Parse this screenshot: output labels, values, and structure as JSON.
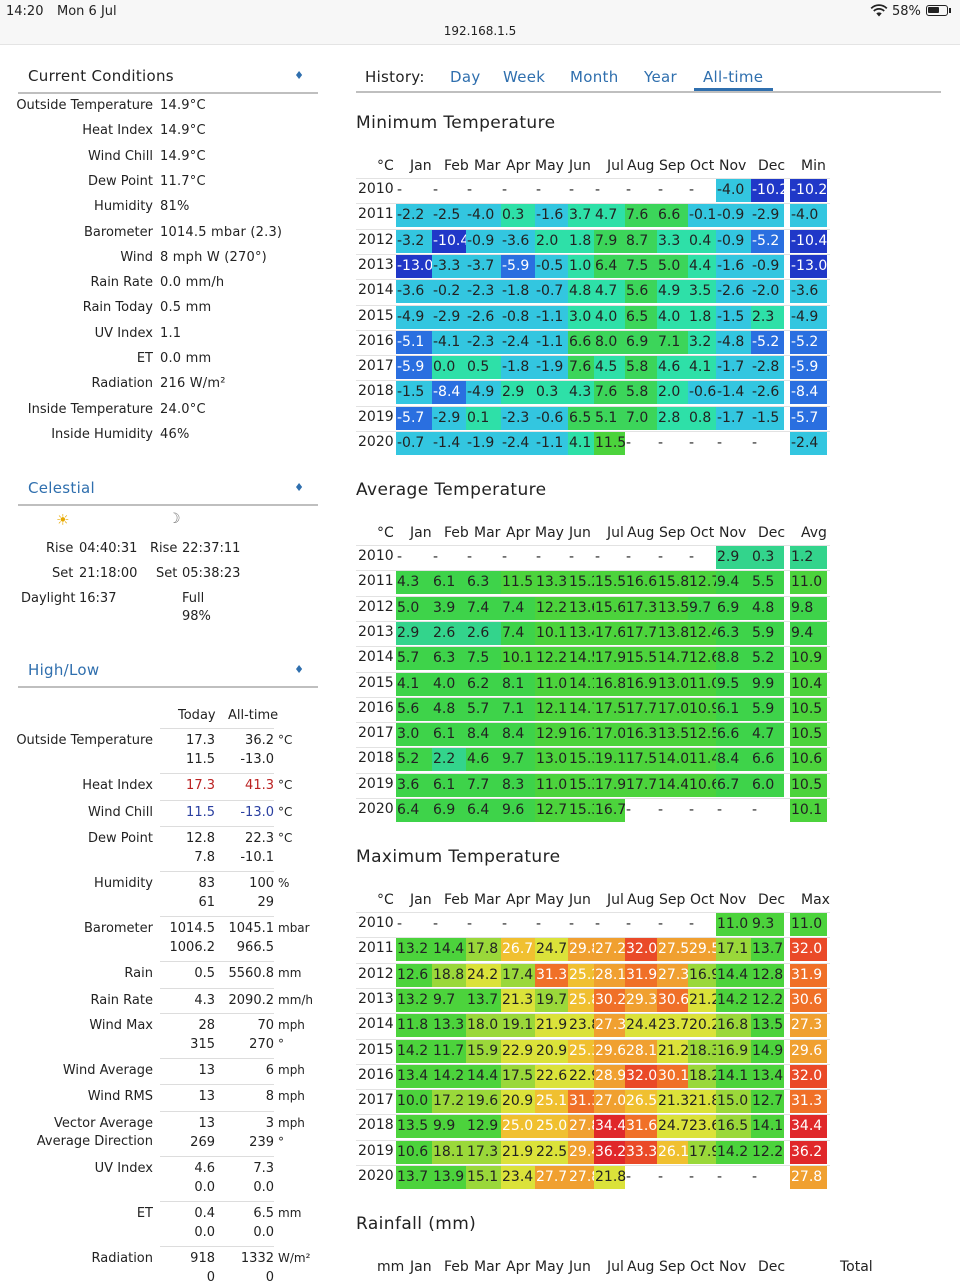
{
  "status_bar": {
    "time": "14:20",
    "date": "Mon 6 Jul",
    "url": "192.168.1.5",
    "battery": "58%"
  },
  "current": {
    "title": "Current Conditions",
    "rows": [
      {
        "label": "Outside Temperature",
        "value": "14.9°C"
      },
      {
        "label": "Heat Index",
        "value": "14.9°C"
      },
      {
        "label": "Wind Chill",
        "value": "14.9°C"
      },
      {
        "label": "Dew Point",
        "value": "11.7°C"
      },
      {
        "label": "Humidity",
        "value": "81%"
      },
      {
        "label": "Barometer",
        "value": "1014.5 mbar (2.3)"
      },
      {
        "label": "Wind",
        "value": "8 mph W (270°)"
      },
      {
        "label": "Rain Rate",
        "value": "0.0 mm/h"
      },
      {
        "label": "Rain Today",
        "value": "0.5 mm"
      },
      {
        "label": "UV Index",
        "value": "1.1"
      },
      {
        "label": "ET",
        "value": "0.0 mm"
      },
      {
        "label": "Radiation",
        "value": "216 W/m²"
      },
      {
        "label": "Inside Temperature",
        "value": "24.0°C"
      },
      {
        "label": "Inside Humidity",
        "value": "46%"
      }
    ]
  },
  "celestial": {
    "title": "Celestial",
    "sun_icon": "sun-icon",
    "moon_icon": "moon-icon",
    "rise_label": "Rise",
    "set_label": "Set",
    "daylight_label": "Daylight",
    "sun_rise": "04:40:31",
    "sun_set": "21:18:00",
    "daylight": "16:37",
    "moon_rise": "22:37:11",
    "moon_set": "05:38:23",
    "moon_phase": "Full",
    "moon_pct": "98%"
  },
  "highlow": {
    "title": "High/Low",
    "col_today": "Today",
    "col_alltime": "All-time",
    "rows": [
      {
        "label": "Outside Temperature",
        "t1": "17.3",
        "a1": "36.2",
        "t2": "11.5",
        "a2": "-13.0",
        "unit": "°C"
      },
      {
        "label": "Heat Index",
        "t1": "17.3",
        "a1": "41.3",
        "unit": "°C",
        "color": "#b22"
      },
      {
        "label": "Wind Chill",
        "t1": "11.5",
        "a1": "-13.0",
        "unit": "°C",
        "color": "#2a3fa0"
      },
      {
        "label": "Dew Point",
        "t1": "12.8",
        "a1": "22.3",
        "t2": "7.8",
        "a2": "-10.1",
        "unit": "°C"
      },
      {
        "label": "Humidity",
        "t1": "83",
        "a1": "100",
        "t2": "61",
        "a2": "29",
        "unit": "%"
      },
      {
        "label": "Barometer",
        "t1": "1014.5",
        "a1": "1045.1",
        "t2": "1006.2",
        "a2": "966.5",
        "unit": "mbar"
      },
      {
        "label": "Rain",
        "t1": "0.5",
        "a1": "5560.8",
        "unit": "mm"
      },
      {
        "label": "Rain Rate",
        "t1": "4.3",
        "a1": "2090.2",
        "unit": "mm/h"
      },
      {
        "label": "Wind Max",
        "t1": "28",
        "a1": "70",
        "t2": "315",
        "a2": "270",
        "unit": "mph",
        "unit2": "°"
      },
      {
        "label": "Wind Average",
        "t1": "13",
        "a1": "6",
        "unit": "mph"
      },
      {
        "label": "Wind RMS",
        "t1": "13",
        "a1": "8",
        "unit": "mph"
      },
      {
        "label": "Vector Average",
        "label2": "Average Direction",
        "t1": "13",
        "a1": "3",
        "t2": "269",
        "a2": "239",
        "unit": "mph",
        "unit2": "°"
      },
      {
        "label": "UV Index",
        "t1": "4.6",
        "a1": "7.3",
        "t2": "0.0",
        "a2": "0.0",
        "unit": ""
      },
      {
        "label": "ET",
        "t1": "0.4",
        "a1": "6.5",
        "t2": "0.0",
        "a2": "0.0",
        "unit": "mm"
      },
      {
        "label": "Radiation",
        "t1": "918",
        "a1": "1332",
        "t2": "0",
        "a2": "0",
        "unit": "W/m²"
      }
    ]
  },
  "history": {
    "label": "History:",
    "tabs": [
      "Day",
      "Week",
      "Month",
      "Year",
      "All-time"
    ],
    "active_tab": "All-time"
  },
  "months": [
    "Jan",
    "Feb",
    "Mar",
    "Apr",
    "May",
    "Jun",
    "Jul",
    "Aug",
    "Sep",
    "Oct",
    "Nov",
    "Dec"
  ],
  "tables": {
    "min": {
      "title": "Minimum Temperature",
      "unit": "°C",
      "summary_label": "Min",
      "years": [
        "2010",
        "2011",
        "2012",
        "2013",
        "2014",
        "2015",
        "2016",
        "2017",
        "2018",
        "2019",
        "2020"
      ],
      "rows": [
        [
          "-",
          "-",
          "-",
          "-",
          "-",
          "-",
          "-",
          "-",
          "-",
          "-",
          "-4.0",
          "-10.2",
          "-10.2"
        ],
        [
          "-2.2",
          "-2.5",
          "-4.0",
          "0.3",
          "-1.6",
          "3.7",
          "4.7",
          "7.6",
          "6.6",
          "-0.1",
          "-0.9",
          "-2.9",
          "-4.0"
        ],
        [
          "-3.2",
          "-10.4",
          "-0.9",
          "-3.6",
          "2.0",
          "1.8",
          "7.9",
          "8.7",
          "3.3",
          "0.4",
          "-0.9",
          "-5.2",
          "-10.4"
        ],
        [
          "-13.0",
          "-3.3",
          "-3.7",
          "-5.9",
          "-0.5",
          "1.0",
          "6.4",
          "7.5",
          "5.0",
          "4.4",
          "-1.6",
          "-0.9",
          "-13.0"
        ],
        [
          "-3.6",
          "-0.2",
          "-2.3",
          "-1.8",
          "-0.7",
          "4.8",
          "4.7",
          "5.6",
          "4.9",
          "3.5",
          "-2.6",
          "-2.0",
          "-3.6"
        ],
        [
          "-4.9",
          "-2.9",
          "-2.6",
          "-0.8",
          "-1.1",
          "3.0",
          "4.0",
          "6.5",
          "4.0",
          "1.8",
          "-1.5",
          "2.3",
          "-4.9"
        ],
        [
          "-5.1",
          "-4.1",
          "-2.3",
          "-2.4",
          "-1.1",
          "6.6",
          "8.0",
          "6.9",
          "7.1",
          "3.2",
          "-4.8",
          "-5.2",
          "-5.2"
        ],
        [
          "-5.9",
          "0.0",
          "0.5",
          "-1.8",
          "-1.9",
          "7.6",
          "4.5",
          "5.8",
          "4.6",
          "4.1",
          "-1.7",
          "-2.8",
          "-5.9"
        ],
        [
          "-1.5",
          "-8.4",
          "-4.9",
          "2.9",
          "0.3",
          "4.3",
          "7.6",
          "5.8",
          "2.0",
          "-0.6",
          "-1.4",
          "-2.6",
          "-8.4"
        ],
        [
          "-5.7",
          "-2.9",
          "0.1",
          "-2.3",
          "-0.6",
          "6.5",
          "5.1",
          "7.0",
          "2.8",
          "0.8",
          "-1.7",
          "-1.5",
          "-5.7"
        ],
        [
          "-0.7",
          "-1.4",
          "-1.9",
          "-2.4",
          "-1.1",
          "4.1",
          "11.5",
          "-",
          "-",
          "-",
          "-",
          "-",
          "-2.4"
        ]
      ]
    },
    "avg": {
      "title": "Average Temperature",
      "unit": "°C",
      "summary_label": "Avg",
      "years": [
        "2010",
        "2011",
        "2012",
        "2013",
        "2014",
        "2015",
        "2016",
        "2017",
        "2018",
        "2019",
        "2020"
      ],
      "rows": [
        [
          "-",
          "-",
          "-",
          "-",
          "-",
          "-",
          "-",
          "-",
          "-",
          "-",
          "2.9",
          "0.3",
          "1.2"
        ],
        [
          "4.3",
          "6.1",
          "6.3",
          "11.5",
          "13.3",
          "15.2",
          "15.5",
          "16.6",
          "15.8",
          "12.7",
          "9.4",
          "5.5",
          "11.0"
        ],
        [
          "5.0",
          "3.9",
          "7.4",
          "7.4",
          "12.2",
          "13.6",
          "15.6",
          "17.3",
          "13.5",
          "9.7",
          "6.9",
          "4.8",
          "9.8"
        ],
        [
          "2.9",
          "2.6",
          "2.6",
          "7.4",
          "10.1",
          "13.4",
          "17.6",
          "17.7",
          "13.8",
          "12.4",
          "6.3",
          "5.9",
          "9.4"
        ],
        [
          "5.7",
          "6.3",
          "7.5",
          "10.1",
          "12.2",
          "14.5",
          "17.9",
          "15.5",
          "14.7",
          "12.6",
          "8.8",
          "5.2",
          "10.9"
        ],
        [
          "4.1",
          "4.0",
          "6.2",
          "8.1",
          "11.0",
          "14.1",
          "16.8",
          "16.9",
          "13.0",
          "11.0",
          "9.5",
          "9.9",
          "10.4"
        ],
        [
          "5.6",
          "4.8",
          "5.7",
          "7.1",
          "12.1",
          "14.7",
          "17.5",
          "17.7",
          "17.0",
          "10.9",
          "6.1",
          "5.9",
          "10.5"
        ],
        [
          "3.0",
          "6.1",
          "8.4",
          "8.4",
          "12.9",
          "16.7",
          "17.0",
          "16.3",
          "13.5",
          "12.5",
          "6.6",
          "4.7",
          "10.5"
        ],
        [
          "5.2",
          "2.2",
          "4.6",
          "9.7",
          "13.0",
          "15.3",
          "19.1",
          "17.5",
          "14.0",
          "11.4",
          "8.4",
          "6.6",
          "10.6"
        ],
        [
          "3.6",
          "6.1",
          "7.7",
          "8.3",
          "11.0",
          "15.3",
          "17.9",
          "17.7",
          "14.4",
          "10.6",
          "6.7",
          "6.0",
          "10.5"
        ],
        [
          "6.4",
          "6.9",
          "6.4",
          "9.6",
          "12.7",
          "15.3",
          "16.7",
          "-",
          "-",
          "-",
          "-",
          "-",
          "10.1"
        ]
      ]
    },
    "max": {
      "title": "Maximum Temperature",
      "unit": "°C",
      "summary_label": "Max",
      "years": [
        "2010",
        "2011",
        "2012",
        "2013",
        "2014",
        "2015",
        "2016",
        "2017",
        "2018",
        "2019",
        "2020"
      ],
      "rows": [
        [
          "-",
          "-",
          "-",
          "-",
          "-",
          "-",
          "-",
          "-",
          "-",
          "-",
          "11.0",
          "9.3",
          "11.0"
        ],
        [
          "13.2",
          "14.4",
          "17.8",
          "26.7",
          "24.7",
          "29.8",
          "27.2",
          "32.0",
          "27.5",
          "29.5",
          "17.1",
          "13.7",
          "32.0"
        ],
        [
          "12.6",
          "18.8",
          "24.2",
          "17.4",
          "31.3",
          "25.2",
          "28.1",
          "31.9",
          "27.3",
          "16.9",
          "14.4",
          "12.8",
          "31.9"
        ],
        [
          "13.2",
          "9.7",
          "13.7",
          "21.3",
          "19.7",
          "25.8",
          "30.2",
          "29.3",
          "30.6",
          "21.2",
          "14.2",
          "12.2",
          "30.6"
        ],
        [
          "11.8",
          "13.3",
          "18.0",
          "19.1",
          "21.9",
          "23.8",
          "27.3",
          "24.4",
          "23.7",
          "20.2",
          "16.8",
          "13.5",
          "27.3"
        ],
        [
          "14.2",
          "11.7",
          "15.9",
          "22.9",
          "20.9",
          "25.3",
          "29.6",
          "28.1",
          "21.2",
          "18.3",
          "16.9",
          "14.9",
          "29.6"
        ],
        [
          "13.4",
          "14.2",
          "14.4",
          "17.5",
          "22.6",
          "22.9",
          "28.9",
          "32.0",
          "30.1",
          "18.2",
          "14.1",
          "13.4",
          "32.0"
        ],
        [
          "10.0",
          "17.2",
          "19.6",
          "20.9",
          "25.1",
          "31.3",
          "27.0",
          "26.5",
          "21.3",
          "21.8",
          "15.0",
          "12.7",
          "31.3"
        ],
        [
          "13.5",
          "9.9",
          "12.9",
          "25.0",
          "25.0",
          "27.8",
          "34.4",
          "31.6",
          "24.7",
          "23.6",
          "16.5",
          "14.1",
          "34.4"
        ],
        [
          "10.6",
          "18.1",
          "17.3",
          "21.9",
          "22.5",
          "29.4",
          "36.2",
          "33.3",
          "26.1",
          "17.9",
          "14.2",
          "12.2",
          "36.2"
        ],
        [
          "13.7",
          "13.9",
          "15.1",
          "23.4",
          "27.7",
          "27.8",
          "21.8",
          "-",
          "-",
          "-",
          "-",
          "-",
          "27.8"
        ]
      ]
    },
    "rain": {
      "title": "Rainfall (mm)",
      "unit": "mm",
      "summary_label": "Total"
    }
  }
}
